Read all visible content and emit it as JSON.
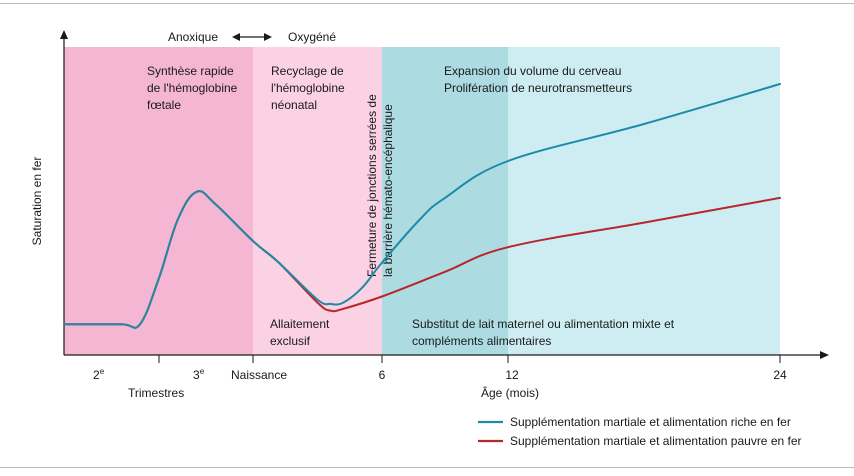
{
  "colors": {
    "zone_fetal": "#f4b6d2",
    "zone_neonatal": "#fad2e3",
    "zone_transition": "#acdbe2",
    "zone_growth": "#cdedf2",
    "series_rich": "#1e8ba6",
    "series_poor": "#b5272d",
    "axis": "#1a1a1a",
    "frame": "#bdbdbd"
  },
  "chart_data": {
    "type": "line",
    "title": "",
    "ylabel": "Saturation en fer",
    "xlabel": "Âge (mois)",
    "xlabel_secondary": "Trimestres",
    "y_scale": "qualitative (no tick values)",
    "x_ticks": {
      "prenatal": [
        {
          "label": "2",
          "sup": "e"
        },
        {
          "label": "3",
          "sup": "e"
        },
        {
          "label": "Naissance",
          "sup": ""
        }
      ],
      "postnatal": [
        "6",
        "12",
        "24"
      ]
    },
    "phase_labels": {
      "anoxic": "Anoxique",
      "oxygenated": "Oxygéné"
    },
    "zone_labels": {
      "fetal": [
        "Synthèse rapide",
        "de l'hémoglobine",
        "fœtale"
      ],
      "neonatal": [
        "Recyclage de",
        "l'hémoglobine",
        "néonatal"
      ],
      "growth": [
        "Expansion du volume du cerveau",
        "Prolifération de neurotransmetteurs"
      ],
      "barrier": [
        "Fermeture de jonctions serrées de",
        "la barrière hémato-encéphalique"
      ],
      "breastfeeding": [
        "Allaitement",
        "exclusif"
      ],
      "substitute": [
        "Substitut de lait maternel ou alimentation mixte et",
        "compléments alimentaires"
      ]
    },
    "series": [
      {
        "name": "Supplémentation martiale et alimentation riche en fer",
        "color": "#1e8ba6",
        "points": [
          [
            0,
            0.1
          ],
          [
            0.6,
            0.1
          ],
          [
            0.8,
            0.1
          ],
          [
            1.0,
            0.25
          ],
          [
            1.2,
            0.44
          ],
          [
            1.4,
            0.53
          ],
          [
            1.6,
            0.49
          ],
          [
            2.0,
            0.37
          ],
          [
            2.2,
            0.3
          ],
          [
            2.5,
            0.18
          ],
          [
            2.6,
            0.166
          ],
          [
            2.7,
            0.17
          ],
          [
            2.85,
            0.22
          ],
          [
            3.0,
            0.3
          ],
          [
            3.3,
            0.44
          ],
          [
            3.5,
            0.51
          ],
          [
            4.0,
            0.63
          ],
          [
            4.5,
            0.75
          ],
          [
            5.0,
            0.88
          ]
        ]
      },
      {
        "name": "Supplémentation martiale et alimentation pauvre en fer",
        "color": "#b5272d",
        "points": [
          [
            0,
            0.1
          ],
          [
            0.6,
            0.1
          ],
          [
            0.8,
            0.1
          ],
          [
            1.0,
            0.25
          ],
          [
            1.2,
            0.44
          ],
          [
            1.4,
            0.53
          ],
          [
            1.6,
            0.49
          ],
          [
            2.0,
            0.37
          ],
          [
            2.2,
            0.3
          ],
          [
            2.5,
            0.17
          ],
          [
            2.6,
            0.144
          ],
          [
            2.7,
            0.15
          ],
          [
            3.0,
            0.19
          ],
          [
            3.5,
            0.27
          ],
          [
            4.0,
            0.35
          ],
          [
            4.5,
            0.43
          ],
          [
            5.0,
            0.51
          ]
        ]
      }
    ]
  }
}
